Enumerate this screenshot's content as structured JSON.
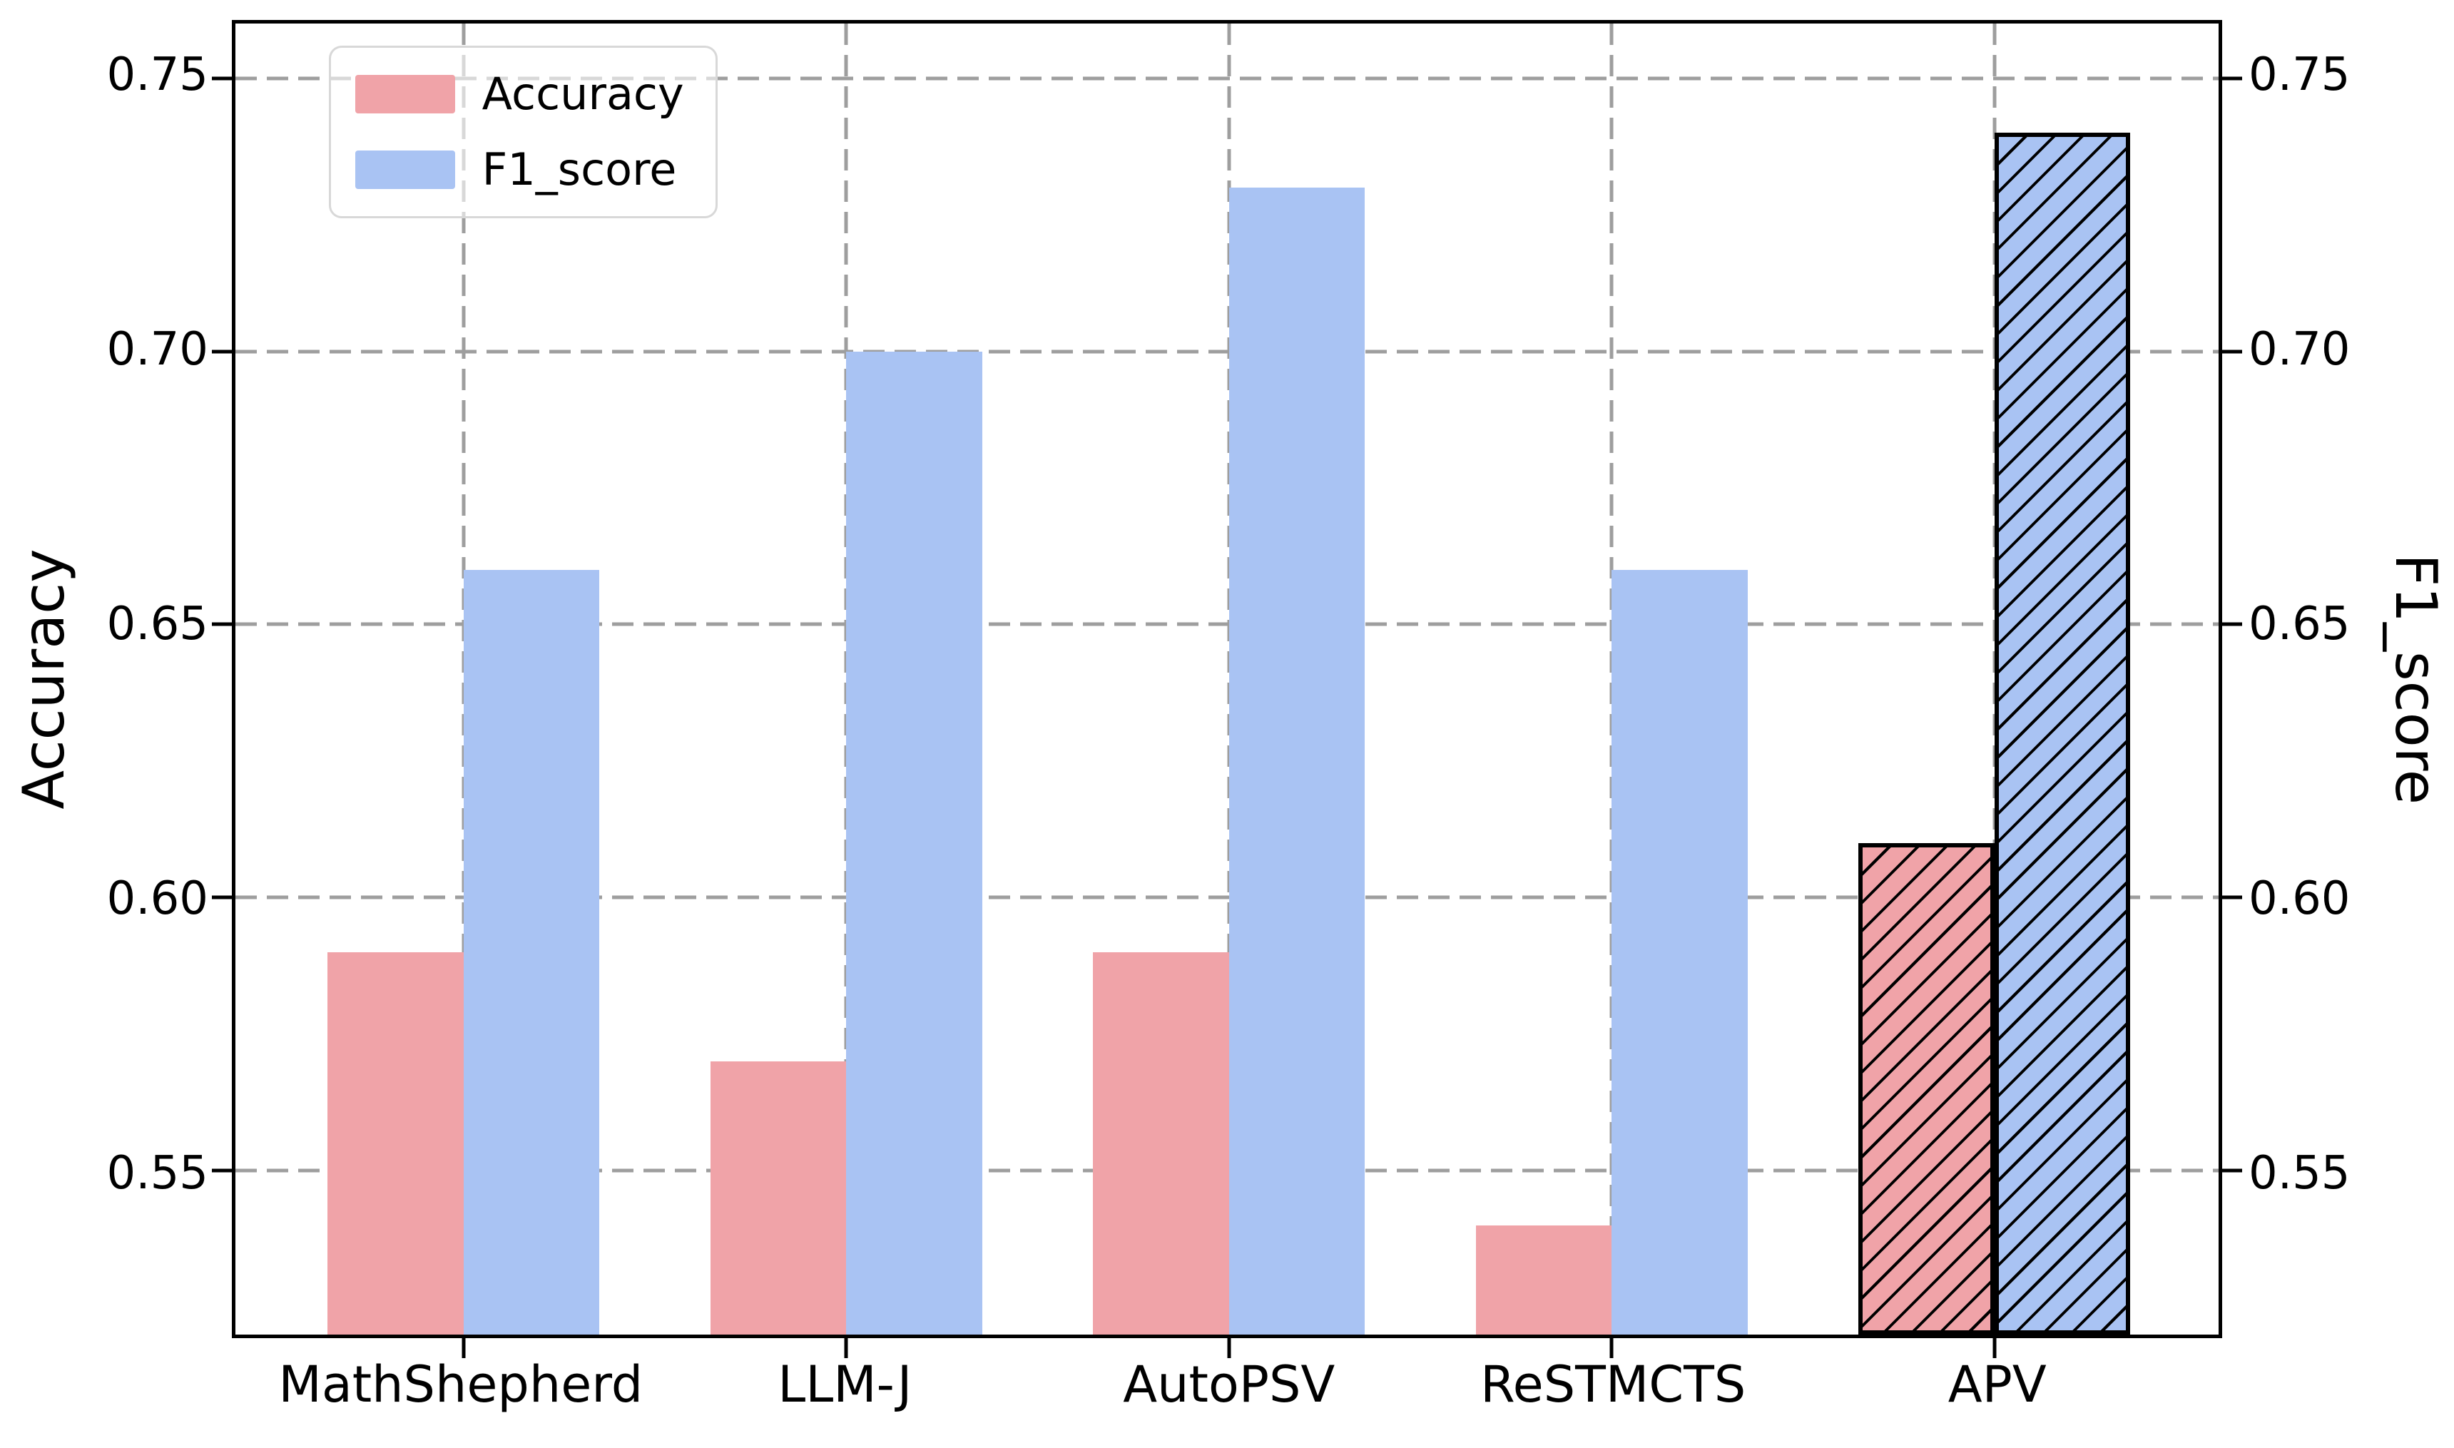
{
  "figure": {
    "background": "#ffffff",
    "kind": "matplotlib-style grouped bar chart"
  },
  "chart_data": {
    "type": "bar",
    "title": "",
    "categories": [
      "MathShepherd",
      "LLM-J",
      "AutoPSV",
      "ReSTMCTS",
      "APV"
    ],
    "series": [
      {
        "name": "Accuracy",
        "axis": "left",
        "color": "#f0a3a8",
        "values": [
          0.59,
          0.57,
          0.59,
          0.54,
          0.61
        ]
      },
      {
        "name": "F1_score",
        "axis": "right",
        "color": "#a9c3f3",
        "values": [
          0.66,
          0.7,
          0.73,
          0.66,
          0.74
        ]
      }
    ],
    "highlight": {
      "category": "APV",
      "style": "hatch",
      "hatch_pattern": "/",
      "edge_color": "#000000"
    },
    "ylabel_left": "Accuracy",
    "ylabel_right": "F1_score",
    "ylim": [
      0.52,
      0.76
    ],
    "yticks": [
      0.55,
      0.6,
      0.65,
      0.7,
      0.75
    ],
    "ytick_labels": [
      "0.55",
      "0.60",
      "0.65",
      "0.70",
      "0.75"
    ],
    "grid": {
      "show": true,
      "style": "dashed",
      "color": "#9e9e9e",
      "both_directions": true
    },
    "legend": {
      "position": "upper left",
      "labels": [
        "Accuracy",
        "F1_score"
      ],
      "frame_alpha": 0.6
    },
    "layout": {
      "first_center_pct": 11.5,
      "center_step_pct": 19.3,
      "bar_width_pct": 6.85
    }
  }
}
